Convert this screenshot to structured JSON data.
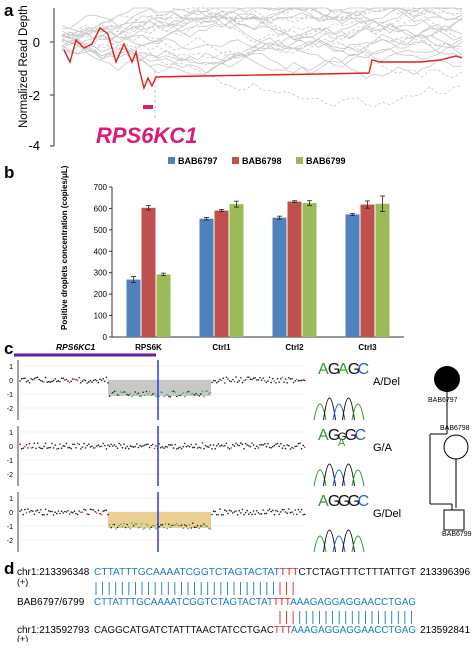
{
  "panel_labels": {
    "a": "a",
    "b": "b",
    "c": "c",
    "d": "d"
  },
  "colors": {
    "red": "#d33a3a",
    "magenta": "#e0187a",
    "blue": "#4f81bd",
    "dark_red": "#c0504d",
    "green": "#9bbb59",
    "gray": "#c8c8c8",
    "purple": "#6a1b9a",
    "seq_blue": "#1a7bbf",
    "seq_red": "#e02020",
    "del_shade": "#c8c8c8",
    "del_shade_tan": "#e9cf91"
  },
  "panel_a": {
    "ylabel": "Normalized Read Depth",
    "gene_label": "RPS6KC1",
    "yticks": [
      "0",
      "-2",
      "-4"
    ]
  },
  "chart_data": [
    {
      "type": "bar",
      "title": "",
      "xlabel": "",
      "ylabel": "Positive droplets concentration (copies/μL)",
      "categories": [
        "RPS6K",
        "Ctrl1",
        "Ctrl2",
        "Ctrl3"
      ],
      "ylim": [
        0,
        700
      ],
      "yticks": [
        "0",
        "100",
        "200",
        "300",
        "400",
        "500",
        "600",
        "700"
      ],
      "legend_position": "top",
      "series": [
        {
          "name": "BAB6797",
          "color": "#4f81bd",
          "values": [
            268,
            552,
            557,
            572
          ],
          "errors": [
            14,
            6,
            7,
            5
          ]
        },
        {
          "name": "BAB6798",
          "color": "#c0504d",
          "values": [
            603,
            590,
            632,
            618
          ],
          "errors": [
            10,
            5,
            4,
            17
          ]
        },
        {
          "name": "BAB6799",
          "color": "#9bbb59",
          "values": [
            292,
            620,
            625,
            622
          ],
          "errors": [
            6,
            14,
            11,
            36
          ]
        }
      ]
    }
  ],
  "panel_c": {
    "gene_label": "RPS6KC1",
    "rows": [
      {
        "seq_letters": [
          "A",
          "G",
          "A",
          "G",
          "C"
        ],
        "genotype": "A/Del"
      },
      {
        "seq_letters": [
          "A",
          "G",
          "G",
          "A",
          "G",
          "C"
        ],
        "genotype": "G/A"
      },
      {
        "seq_letters": [
          "A",
          "G",
          "G",
          "G",
          "C"
        ],
        "genotype": "G/Del"
      }
    ],
    "yticks": [
      "1",
      "0",
      "-1",
      "-2"
    ],
    "pedigree": {
      "ind1": "BAB6797",
      "ind2": "BAB6798",
      "ind3": "BAB6799"
    }
  },
  "panel_d": {
    "row1": {
      "left": "chr1:213396348",
      "strand": "(+)",
      "seq_blue": "CTTATTTGCAAAATCGGTCTAGTACTAT",
      "seq_red": "TTT",
      "seq_rest": "CTCTAGTTTCTTTATTGT",
      "right": "213396396"
    },
    "row2": {
      "left": "BAB6797/6799",
      "seq_blue": "CTTATTTGCAAAATCGGTCTAGTACTAT",
      "seq_red": "TTT",
      "seq_blue2": "AAAGAGGAGGAACCTGAG"
    },
    "row3": {
      "left": "chr1:213592793",
      "strand": "(+)",
      "seq_rest": "CAGGCATGATCTATTTAACTATCCTGAC",
      "seq_red": "TTT",
      "seq_blue2": "AAAGAGGAGGAACCTGAG",
      "right": "213592841"
    }
  }
}
